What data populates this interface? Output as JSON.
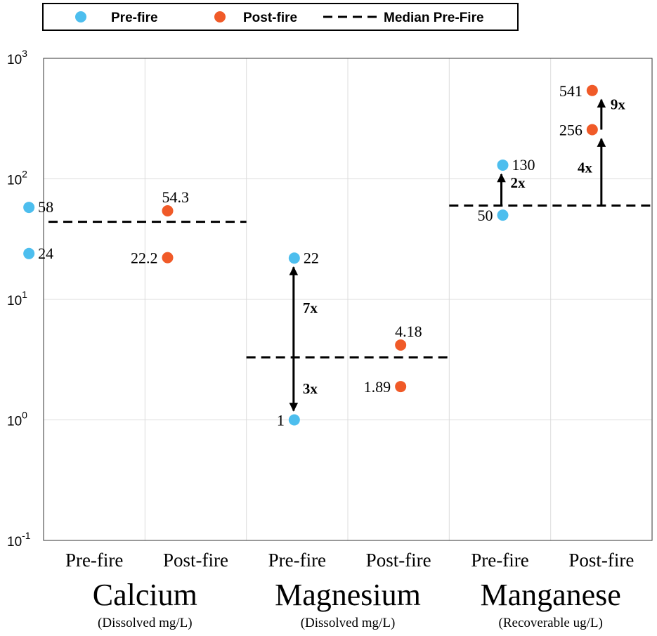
{
  "chart_data": {
    "type": "scatter",
    "y_scale": "log",
    "ylim": [
      0.1,
      1000
    ],
    "y_ticks": [
      {
        "value": 0.1,
        "base": "10",
        "exp": "-1"
      },
      {
        "value": 1,
        "base": "10",
        "exp": "0"
      },
      {
        "value": 10,
        "base": "10",
        "exp": "1"
      },
      {
        "value": 100,
        "base": "10",
        "exp": "2"
      },
      {
        "value": 1000,
        "base": "10",
        "exp": "3"
      }
    ],
    "grid": true,
    "categories": [
      "Pre-fire",
      "Post-fire",
      "Pre-fire",
      "Post-fire",
      "Pre-fire",
      "Post-fire"
    ],
    "groups": [
      {
        "name": "Calcium",
        "unit": "(Dissolved mg/L)"
      },
      {
        "name": "Magnesium",
        "unit": "(Dissolved mg/L)"
      },
      {
        "name": "Manganese",
        "unit": "(Recoverable ug/L)"
      }
    ],
    "legend": {
      "placement": "top",
      "entries": [
        {
          "label": "Pre-fire",
          "kind": "marker",
          "color": "#4DBEEE"
        },
        {
          "label": "Post-fire",
          "kind": "marker",
          "color": "#F05A28"
        },
        {
          "label": "Median Pre-Fire",
          "kind": "dashed-line",
          "color": "#000000"
        }
      ]
    },
    "series": [
      {
        "name": "Pre-fire",
        "color": "#4DBEEE",
        "points": [
          {
            "cat": 0,
            "y": 58,
            "label": "58",
            "side": "right"
          },
          {
            "cat": 0,
            "y": 24,
            "label": "24",
            "side": "right"
          },
          {
            "cat": 2,
            "y": 22,
            "label": "22",
            "side": "right"
          },
          {
            "cat": 2,
            "y": 1,
            "label": "1",
            "side": "left"
          },
          {
            "cat": 4,
            "y": 130,
            "label": "130",
            "side": "right"
          },
          {
            "cat": 4,
            "y": 50,
            "label": "50",
            "side": "left"
          }
        ]
      },
      {
        "name": "Post-fire",
        "color": "#F05A28",
        "points": [
          {
            "cat": 1,
            "y": 54.3,
            "label": "54.3",
            "side": "above"
          },
          {
            "cat": 1,
            "y": 22.2,
            "label": "22.2",
            "side": "left"
          },
          {
            "cat": 3,
            "y": 4.18,
            "label": "4.18",
            "side": "above"
          },
          {
            "cat": 3,
            "y": 1.89,
            "label": "1.89",
            "side": "left"
          },
          {
            "cat": 5,
            "y": 541,
            "label": "541",
            "side": "left"
          },
          {
            "cat": 5,
            "y": 256,
            "label": "256",
            "side": "left"
          }
        ]
      }
    ],
    "medians": [
      {
        "group": 0,
        "y": 44,
        "x_from": 0,
        "x_to": 1.5
      },
      {
        "group": 1,
        "y": 3.3,
        "x_from": 1.5,
        "x_to": 3.5
      },
      {
        "group": 2,
        "y": 60,
        "x_from": 3.5,
        "x_to": 5.5
      }
    ],
    "annotations": [
      {
        "label": "7x",
        "cat": 2,
        "from": 3.3,
        "to": 22
      },
      {
        "label": "3x",
        "cat": 2,
        "from": 3.3,
        "to": 1
      },
      {
        "label": "2x",
        "cat": 4,
        "from": 60,
        "to": 130
      },
      {
        "label": "4x",
        "cat": 5,
        "from": 60,
        "to": 256
      },
      {
        "label": "9x",
        "cat": 5,
        "from": 256,
        "to": 541
      }
    ]
  }
}
